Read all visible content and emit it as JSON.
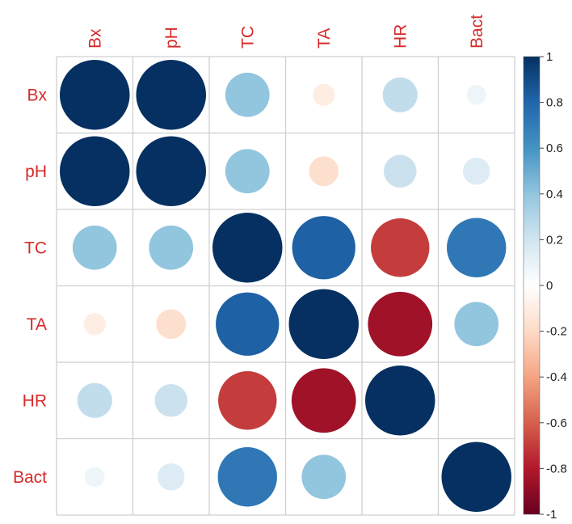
{
  "chart_data": {
    "type": "heatmap",
    "style": "circle correlation matrix",
    "variables": [
      "Bx",
      "pH",
      "TC",
      "TA",
      "HR",
      "Bact"
    ],
    "matrix": [
      [
        1.0,
        1.0,
        0.4,
        -0.1,
        0.25,
        0.08
      ],
      [
        1.0,
        1.0,
        0.4,
        -0.18,
        0.22,
        0.15
      ],
      [
        0.4,
        0.4,
        1.0,
        0.82,
        -0.7,
        0.72
      ],
      [
        -0.1,
        -0.18,
        0.82,
        1.0,
        -0.85,
        0.4
      ],
      [
        0.25,
        0.22,
        -0.7,
        -0.85,
        1.0,
        null
      ],
      [
        0.08,
        0.15,
        0.72,
        0.4,
        null,
        1.0
      ]
    ],
    "colorbar": {
      "range": [
        -1,
        1
      ],
      "ticks": [
        "1",
        "0.8",
        "0.6",
        "0.4",
        "0.2",
        "0",
        "-0.2",
        "-0.4",
        "-0.6",
        "-0.8",
        "-1"
      ],
      "colors": [
        "#67001f",
        "#b2182b",
        "#d6604d",
        "#f4a582",
        "#fddbc7",
        "#ffffff",
        "#d1e5f0",
        "#92c5de",
        "#4393c3",
        "#2166ac",
        "#053061"
      ]
    },
    "label_color": "#d62a2a",
    "grid": true
  }
}
